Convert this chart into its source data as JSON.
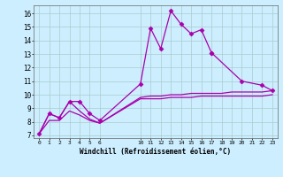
{
  "xlabel": "Windchill (Refroidissement éolien,°C)",
  "bg_color": "#cceeff",
  "grid_color": "#aacccc",
  "line_color": "#aa00aa",
  "xlim": [
    -0.5,
    23.5
  ],
  "ylim": [
    6.8,
    16.6
  ],
  "xticks": [
    0,
    1,
    2,
    3,
    4,
    5,
    6,
    10,
    11,
    12,
    13,
    14,
    15,
    16,
    17,
    18,
    19,
    20,
    21,
    22,
    23
  ],
  "yticks": [
    7,
    8,
    9,
    10,
    11,
    12,
    13,
    14,
    15,
    16
  ],
  "series": [
    {
      "x": [
        0,
        1,
        2,
        3,
        4,
        5,
        6,
        10,
        11,
        12,
        13,
        14,
        15,
        16,
        17
      ],
      "y": [
        7.1,
        8.6,
        8.3,
        9.5,
        9.5,
        8.6,
        8.1,
        10.8,
        14.9,
        13.4,
        16.2,
        15.2,
        14.5,
        14.8,
        13.1
      ],
      "marker": "D",
      "markersize": 2.5,
      "lw": 0.9
    },
    {
      "x": [
        17,
        20,
        22,
        23
      ],
      "y": [
        13.1,
        11.0,
        10.7,
        10.3
      ],
      "marker": "D",
      "markersize": 2.5,
      "lw": 0.9
    },
    {
      "x": [
        0,
        1,
        2,
        3,
        4,
        5,
        6,
        10,
        11,
        12,
        13,
        14,
        15,
        16,
        17,
        18,
        19,
        20,
        21,
        22,
        23
      ],
      "y": [
        7.1,
        8.6,
        8.3,
        9.5,
        8.8,
        8.2,
        7.9,
        9.8,
        9.9,
        9.9,
        10.0,
        10.0,
        10.1,
        10.1,
        10.1,
        10.1,
        10.2,
        10.2,
        10.2,
        10.2,
        10.3
      ],
      "marker": null,
      "markersize": 0,
      "lw": 0.9
    },
    {
      "x": [
        0,
        1,
        2,
        3,
        4,
        5,
        6,
        10,
        11,
        12,
        13,
        14,
        15,
        16,
        17,
        18,
        19,
        20,
        21,
        22,
        23
      ],
      "y": [
        7.1,
        8.1,
        8.1,
        8.8,
        8.5,
        8.1,
        7.9,
        9.7,
        9.7,
        9.7,
        9.8,
        9.8,
        9.8,
        9.9,
        9.9,
        9.9,
        9.9,
        9.9,
        9.9,
        9.9,
        10.0
      ],
      "marker": null,
      "markersize": 0,
      "lw": 0.9
    }
  ]
}
